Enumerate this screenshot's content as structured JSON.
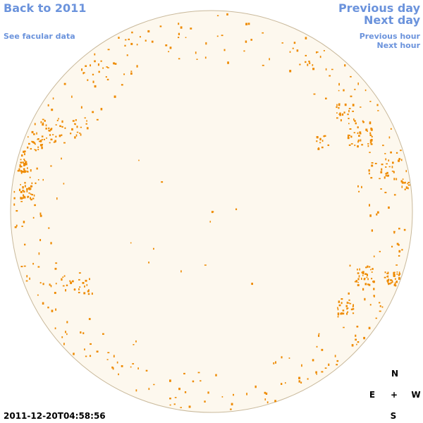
{
  "navigation": {
    "back": "Back to 2011",
    "facular_data": "See facular data",
    "previous_day": "Previous day",
    "next_day": "Next day",
    "previous_hour": "Previous hour",
    "next_hour": "Next hour"
  },
  "compass": {
    "north": "N",
    "east": "E",
    "center": "+",
    "west": "W",
    "south": "S"
  },
  "timestamp": "2011-12-20T04:58:56"
}
